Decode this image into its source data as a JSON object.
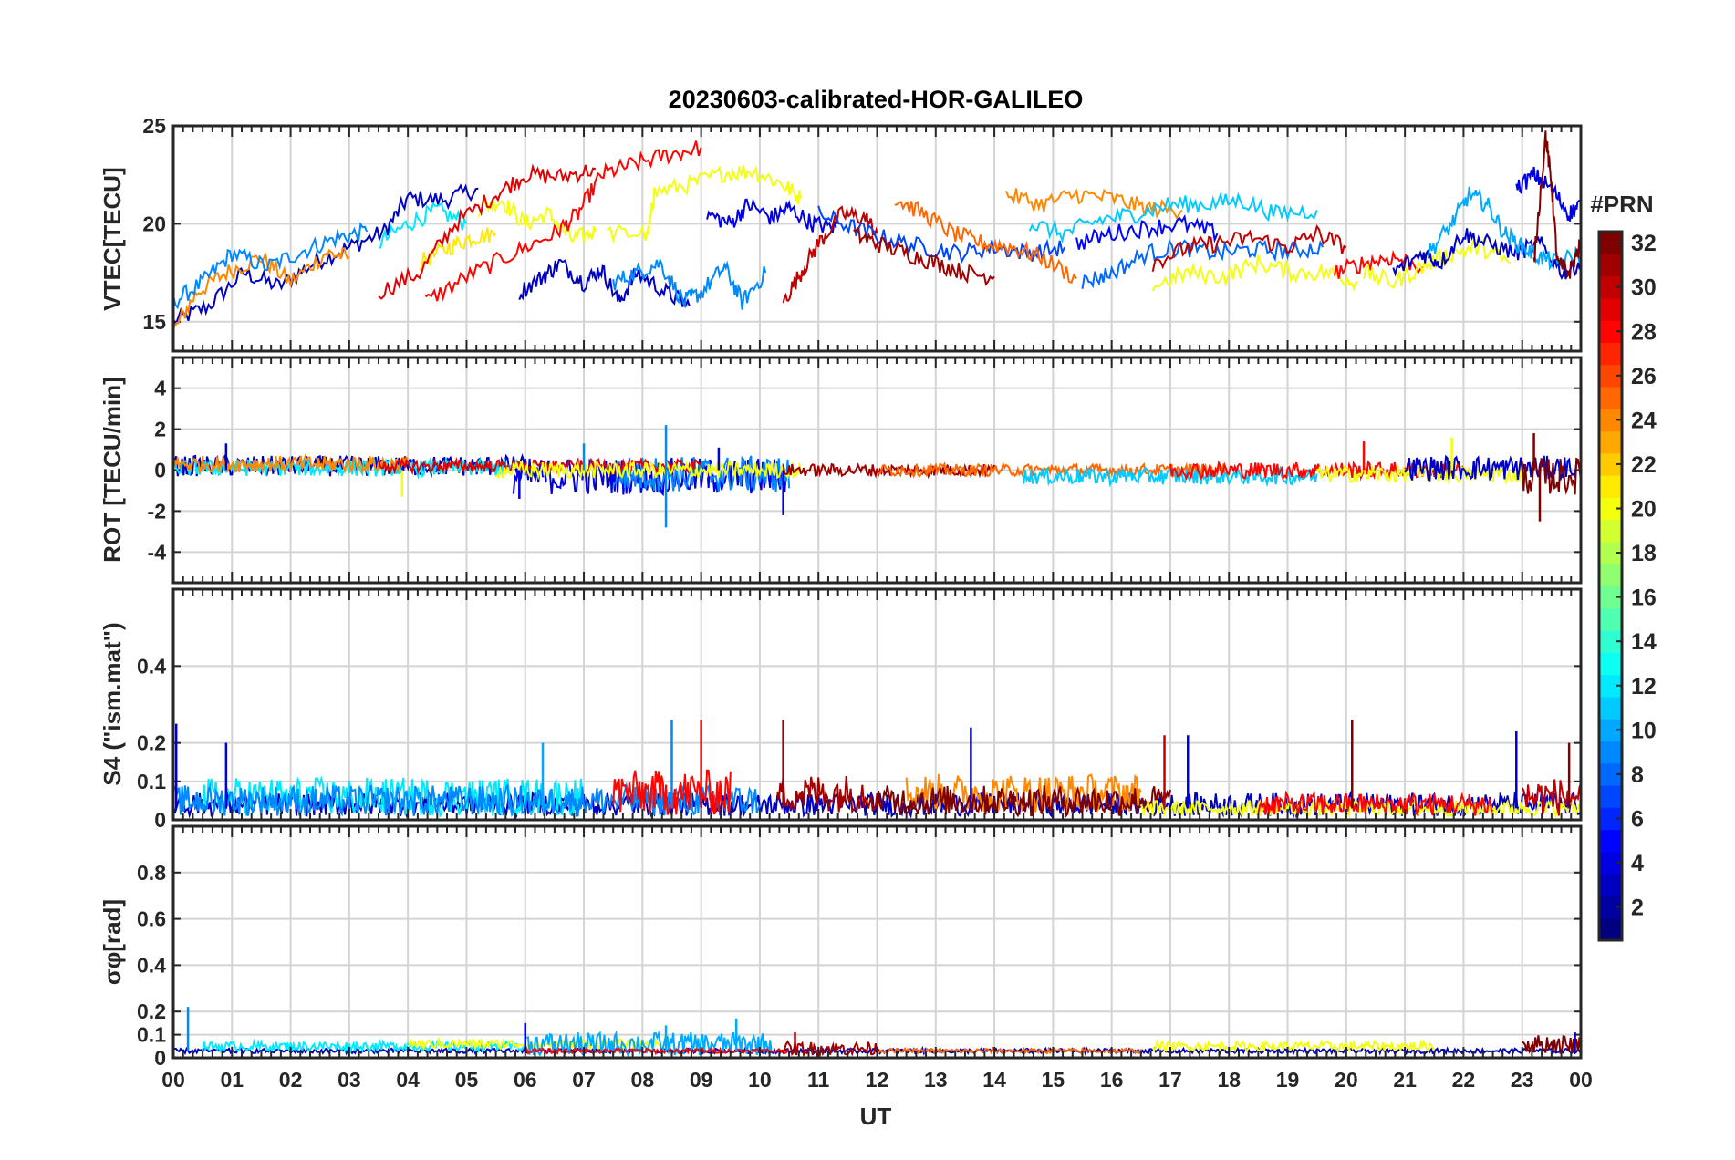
{
  "figure": {
    "title": "20230603-calibrated-HOR-GALILEO",
    "xlabel": "UT",
    "x_tick_labels": [
      "00",
      "01",
      "02",
      "03",
      "04",
      "05",
      "06",
      "07",
      "08",
      "09",
      "10",
      "11",
      "12",
      "13",
      "14",
      "15",
      "16",
      "17",
      "18",
      "19",
      "20",
      "21",
      "22",
      "23",
      "00"
    ]
  },
  "colorbar": {
    "label": "#PRN",
    "range": [
      1,
      32
    ],
    "tick_labels": [
      "2",
      "4",
      "6",
      "8",
      "10",
      "12",
      "14",
      "16",
      "18",
      "20",
      "22",
      "24",
      "26",
      "28",
      "30",
      "32"
    ],
    "colormap": "jet"
  },
  "chart_data": [
    {
      "type": "line",
      "ylabel": "VTEC[TECU]",
      "xlim": [
        0,
        24
      ],
      "ylim": [
        13.5,
        25
      ],
      "y_tick_labels": [
        "15",
        "20",
        "25"
      ],
      "grid": true,
      "series": [
        {
          "prn": 3,
          "x": [
            0.0,
            0.6,
            1.2,
            1.8,
            2.4,
            3.0,
            3.6,
            4.0,
            4.6,
            5.2
          ],
          "y": [
            15.0,
            15.8,
            17.5,
            16.8,
            18.0,
            18.8,
            19.6,
            21.3,
            21.2,
            21.8
          ]
        },
        {
          "prn": 24,
          "x": [
            0.0,
            0.4,
            0.9,
            1.5,
            2.0,
            2.6,
            3.0
          ],
          "y": [
            14.5,
            16.5,
            17.5,
            18.3,
            17.0,
            18.5,
            18.3
          ]
        },
        {
          "prn": 9,
          "x": [
            0.0,
            0.5,
            1.0,
            1.6,
            2.2,
            2.8,
            3.3
          ],
          "y": [
            16.0,
            17.0,
            18.5,
            17.8,
            18.6,
            19.3,
            19.6
          ]
        },
        {
          "prn": 12,
          "x": [
            3.5,
            4.0,
            4.5,
            5.0
          ],
          "y": [
            19.0,
            20.0,
            20.7,
            20.0
          ]
        },
        {
          "prn": 21,
          "x": [
            4.2,
            4.7,
            5.1,
            5.5
          ],
          "y": [
            18.0,
            18.8,
            19.3,
            19.5
          ]
        },
        {
          "prn": 20,
          "x": [
            5.2,
            5.6,
            6.0,
            6.4,
            6.8,
            7.2
          ],
          "y": [
            20.8,
            21.2,
            20.0,
            20.5,
            19.2,
            19.6
          ]
        },
        {
          "prn": 29,
          "x": [
            3.5,
            4.2,
            4.8,
            5.5,
            6.0,
            6.6,
            7.2
          ],
          "y": [
            16.5,
            17.5,
            20.0,
            21.5,
            22.5,
            22.4,
            22.8
          ]
        },
        {
          "prn": 28,
          "x": [
            4.3,
            5.0,
            5.8,
            6.5,
            6.9,
            7.3,
            7.8,
            8.4,
            9.0
          ],
          "y": [
            16.0,
            17.3,
            18.5,
            19.5,
            20.5,
            22.5,
            23.0,
            23.5,
            23.9
          ]
        },
        {
          "prn": 20,
          "x": [
            7.4,
            8.1,
            8.2,
            8.8,
            9.4,
            9.9,
            10.4,
            10.7
          ],
          "y": [
            19.5,
            19.5,
            21.6,
            22.0,
            22.6,
            22.7,
            22.0,
            21.3
          ]
        },
        {
          "prn": 3,
          "x": [
            5.9,
            6.3,
            6.6,
            7.0,
            7.3,
            7.6,
            7.9,
            8.4,
            8.8
          ],
          "y": [
            16.5,
            17.3,
            18.0,
            17.0,
            17.7,
            16.0,
            17.5,
            16.5,
            15.8
          ]
        },
        {
          "prn": 9,
          "x": [
            7.5,
            7.9,
            8.3,
            8.7,
            9.0,
            9.4,
            9.7,
            10.1
          ],
          "y": [
            17.0,
            17.5,
            18.0,
            16.0,
            16.5,
            17.8,
            16.0,
            17.5
          ]
        },
        {
          "prn": 4,
          "x": [
            9.1,
            9.5,
            9.8,
            10.2,
            10.5,
            10.9,
            11.3
          ],
          "y": [
            20.5,
            20.0,
            21.0,
            20.3,
            20.8,
            20.0,
            19.8
          ]
        },
        {
          "prn": 30,
          "x": [
            10.4,
            10.7,
            11.0,
            11.4,
            11.8,
            12.0
          ],
          "y": [
            16.0,
            17.5,
            19.0,
            20.5,
            20.3,
            19.5
          ]
        },
        {
          "prn": 7,
          "x": [
            11.0,
            11.6,
            12.2,
            12.8,
            13.4,
            14.0,
            14.6,
            15.2
          ],
          "y": [
            20.5,
            19.8,
            19.2,
            18.8,
            18.5,
            18.8,
            18.5,
            18.8
          ]
        },
        {
          "prn": 31,
          "x": [
            11.6,
            12.0,
            12.5,
            13.0,
            13.5,
            14.0
          ],
          "y": [
            19.5,
            19.0,
            18.5,
            18.0,
            17.5,
            17.3
          ]
        },
        {
          "prn": 25,
          "x": [
            12.3,
            12.8,
            13.3,
            13.8,
            14.3,
            14.8,
            15.4
          ],
          "y": [
            21.3,
            20.5,
            19.5,
            19.0,
            18.8,
            18.3,
            17.2
          ]
        },
        {
          "prn": 24,
          "x": [
            14.2,
            14.8,
            15.4,
            16.0,
            16.6,
            17.2
          ],
          "y": [
            21.5,
            21.0,
            21.5,
            21.3,
            20.8,
            20.7
          ]
        },
        {
          "prn": 11,
          "x": [
            14.6,
            15.2,
            15.8,
            16.4,
            17.0,
            17.6,
            18.2,
            18.8,
            19.5
          ],
          "y": [
            20.0,
            19.5,
            20.2,
            20.5,
            21.0,
            21.0,
            21.2,
            20.5,
            20.7
          ]
        },
        {
          "prn": 8,
          "x": [
            15.5,
            16.0,
            16.6,
            17.2,
            17.8,
            18.4,
            19.0,
            19.6
          ],
          "y": [
            17.0,
            17.5,
            18.5,
            18.8,
            18.5,
            18.7,
            18.6,
            18.8
          ]
        },
        {
          "prn": 5,
          "x": [
            15.4,
            16.0,
            16.6,
            17.2,
            17.8
          ],
          "y": [
            19.0,
            19.5,
            19.8,
            20.0,
            19.5
          ]
        },
        {
          "prn": 20,
          "x": [
            16.7,
            17.3,
            17.9,
            18.5,
            19.1,
            19.7,
            20.2
          ],
          "y": [
            16.8,
            17.5,
            17.3,
            18.0,
            17.5,
            17.5,
            17.0
          ]
        },
        {
          "prn": 30,
          "x": [
            16.7,
            17.3,
            17.8,
            18.4,
            19.0,
            19.5,
            20.0
          ],
          "y": [
            18.0,
            18.8,
            19.0,
            19.3,
            18.8,
            19.5,
            18.8
          ]
        },
        {
          "prn": 28,
          "x": [
            19.8,
            20.3,
            20.8,
            21.3
          ],
          "y": [
            17.5,
            18.0,
            18.3,
            17.8
          ]
        },
        {
          "prn": 20,
          "x": [
            20.3,
            20.8,
            21.3,
            21.8,
            22.3,
            22.8
          ],
          "y": [
            17.5,
            17.0,
            17.8,
            18.5,
            18.8,
            18.0
          ]
        },
        {
          "prn": 3,
          "x": [
            20.8,
            21.3,
            21.6,
            22.0,
            22.4,
            22.9,
            23.3,
            23.7,
            24.0
          ],
          "y": [
            17.5,
            18.5,
            18.0,
            19.5,
            19.0,
            18.5,
            19.0,
            17.5,
            18.0
          ]
        },
        {
          "prn": 10,
          "x": [
            21.4,
            21.8,
            22.1,
            22.4,
            22.7,
            23.0,
            23.3,
            23.6,
            24.0
          ],
          "y": [
            18.5,
            20.0,
            21.5,
            21.0,
            19.5,
            18.8,
            18.3,
            18.0,
            18.5
          ]
        },
        {
          "prn": 4,
          "x": [
            22.9,
            23.2,
            23.5,
            23.8,
            24.0
          ],
          "y": [
            21.8,
            22.5,
            21.8,
            20.5,
            21.0
          ]
        },
        {
          "prn": 32,
          "x": [
            23.2,
            23.4,
            23.5,
            23.6,
            23.8,
            24.0
          ],
          "y": [
            18.0,
            24.5,
            22.0,
            18.0,
            17.5,
            19.0
          ]
        }
      ]
    },
    {
      "type": "line",
      "ylabel": "ROT [TECU/min]",
      "xlim": [
        0,
        24
      ],
      "ylim": [
        -5.5,
        5.5
      ],
      "y_tick_labels": [
        "-4",
        "-2",
        "0",
        "2",
        "4"
      ],
      "grid": true,
      "noise_bands": [
        {
          "prn": 3,
          "x_range": [
            0.0,
            6.0
          ],
          "center": 0.2,
          "amplitude": 0.5
        },
        {
          "prn": 12,
          "x_range": [
            0.0,
            6.0
          ],
          "center": 0.1,
          "amplitude": 0.4
        },
        {
          "prn": 24,
          "x_range": [
            0.0,
            4.0
          ],
          "center": 0.3,
          "amplitude": 0.4
        },
        {
          "prn": 4,
          "x_range": [
            5.8,
            10.5
          ],
          "center": -0.3,
          "amplitude": 0.9
        },
        {
          "prn": 9,
          "x_range": [
            7.5,
            10.5
          ],
          "center": -0.2,
          "amplitude": 0.9
        },
        {
          "prn": 29,
          "x_range": [
            3.5,
            9.0
          ],
          "center": 0.2,
          "amplitude": 0.3
        },
        {
          "prn": 20,
          "x_range": [
            5.5,
            10.7
          ],
          "center": 0.0,
          "amplitude": 0.4
        },
        {
          "prn": 31,
          "x_range": [
            10.4,
            14.0
          ],
          "center": 0.0,
          "amplitude": 0.3
        },
        {
          "prn": 25,
          "x_range": [
            12.0,
            18.0
          ],
          "center": 0.0,
          "amplitude": 0.3
        },
        {
          "prn": 11,
          "x_range": [
            14.5,
            19.5
          ],
          "center": -0.3,
          "amplitude": 0.4
        },
        {
          "prn": 28,
          "x_range": [
            17.0,
            22.0
          ],
          "center": 0.0,
          "amplitude": 0.4
        },
        {
          "prn": 20,
          "x_range": [
            19.5,
            23.0
          ],
          "center": -0.2,
          "amplitude": 0.4
        },
        {
          "prn": 3,
          "x_range": [
            21.0,
            24.0
          ],
          "center": 0.1,
          "amplitude": 0.6
        },
        {
          "prn": 32,
          "x_range": [
            23.0,
            24.0
          ],
          "center": -0.3,
          "amplitude": 0.9
        }
      ],
      "spikes": [
        {
          "prn": 9,
          "x": 8.4,
          "y": 2.2
        },
        {
          "prn": 9,
          "x": 8.4,
          "y": -2.8
        },
        {
          "prn": 4,
          "x": 10.4,
          "y": -2.2
        },
        {
          "prn": 32,
          "x": 23.3,
          "y": -2.5
        },
        {
          "prn": 32,
          "x": 23.2,
          "y": 1.8
        },
        {
          "prn": 3,
          "x": 0.9,
          "y": 1.3
        },
        {
          "prn": 28,
          "x": 20.3,
          "y": 1.4
        },
        {
          "prn": 20,
          "x": 21.8,
          "y": 1.6
        },
        {
          "prn": 20,
          "x": 3.9,
          "y": -1.3
        },
        {
          "prn": 4,
          "x": 5.9,
          "y": -1.4
        },
        {
          "prn": 9,
          "x": 7.0,
          "y": 1.3
        },
        {
          "prn": 4,
          "x": 9.3,
          "y": 1.1
        }
      ]
    },
    {
      "type": "line",
      "ylabel": "S4 (\"ism.mat\")",
      "xlim": [
        0,
        24
      ],
      "ylim": [
        0,
        0.6
      ],
      "y_tick_labels": [
        "0",
        "0.1",
        "0.2",
        "0.4"
      ],
      "grid": true,
      "noise_bands": [
        {
          "prn": 3,
          "x_range": [
            0.0,
            24.0
          ],
          "center": 0.04,
          "amplitude": 0.03
        },
        {
          "prn": 12,
          "x_range": [
            0.5,
            7.0
          ],
          "center": 0.06,
          "amplitude": 0.05
        },
        {
          "prn": 9,
          "x_range": [
            0.0,
            10.0
          ],
          "center": 0.05,
          "amplitude": 0.04
        },
        {
          "prn": 28,
          "x_range": [
            7.5,
            9.5
          ],
          "center": 0.07,
          "amplitude": 0.06
        },
        {
          "prn": 31,
          "x_range": [
            10.3,
            12.0
          ],
          "center": 0.07,
          "amplitude": 0.05
        },
        {
          "prn": 24,
          "x_range": [
            12.5,
            16.5
          ],
          "center": 0.07,
          "amplitude": 0.05
        },
        {
          "prn": 32,
          "x_range": [
            12.0,
            17.0
          ],
          "center": 0.05,
          "amplitude": 0.04
        },
        {
          "prn": 20,
          "x_range": [
            16.5,
            24.0
          ],
          "center": 0.03,
          "amplitude": 0.02
        },
        {
          "prn": 28,
          "x_range": [
            18.5,
            22.5
          ],
          "center": 0.04,
          "amplitude": 0.03
        },
        {
          "prn": 30,
          "x_range": [
            23.0,
            24.0
          ],
          "center": 0.06,
          "amplitude": 0.05
        }
      ],
      "spikes": [
        {
          "prn": 3,
          "x": 0.05,
          "y": 0.25
        },
        {
          "prn": 4,
          "x": 0.9,
          "y": 0.2
        },
        {
          "prn": 9,
          "x": 8.5,
          "y": 0.26
        },
        {
          "prn": 28,
          "x": 9.0,
          "y": 0.26
        },
        {
          "prn": 31,
          "x": 10.4,
          "y": 0.26
        },
        {
          "prn": 5,
          "x": 13.6,
          "y": 0.24
        },
        {
          "prn": 4,
          "x": 17.3,
          "y": 0.22
        },
        {
          "prn": 30,
          "x": 16.9,
          "y": 0.22
        },
        {
          "prn": 32,
          "x": 20.1,
          "y": 0.26
        },
        {
          "prn": 3,
          "x": 22.9,
          "y": 0.23
        },
        {
          "prn": 32,
          "x": 23.8,
          "y": 0.2
        },
        {
          "prn": 10,
          "x": 6.3,
          "y": 0.2
        }
      ]
    },
    {
      "type": "line",
      "ylabel": "σφ[rad]",
      "xlim": [
        0,
        24
      ],
      "ylim": [
        0,
        1.0
      ],
      "y_tick_labels": [
        "0",
        "0.1",
        "0.2",
        "0.4",
        "0.6",
        "0.8"
      ],
      "grid": true,
      "noise_bands": [
        {
          "prn": 3,
          "x_range": [
            0.0,
            24.0
          ],
          "center": 0.03,
          "amplitude": 0.01
        },
        {
          "prn": 12,
          "x_range": [
            0.5,
            6.0
          ],
          "center": 0.05,
          "amplitude": 0.02
        },
        {
          "prn": 20,
          "x_range": [
            4.0,
            8.5
          ],
          "center": 0.06,
          "amplitude": 0.02
        },
        {
          "prn": 10,
          "x_range": [
            6.0,
            10.2
          ],
          "center": 0.06,
          "amplitude": 0.05
        },
        {
          "prn": 28,
          "x_range": [
            6.0,
            10.5
          ],
          "center": 0.03,
          "amplitude": 0.01
        },
        {
          "prn": 31,
          "x_range": [
            10.4,
            12.0
          ],
          "center": 0.04,
          "amplitude": 0.03
        },
        {
          "prn": 25,
          "x_range": [
            12.0,
            16.5
          ],
          "center": 0.03,
          "amplitude": 0.01
        },
        {
          "prn": 20,
          "x_range": [
            16.7,
            21.5
          ],
          "center": 0.05,
          "amplitude": 0.02
        },
        {
          "prn": 32,
          "x_range": [
            23.0,
            24.0
          ],
          "center": 0.06,
          "amplitude": 0.04
        }
      ],
      "spikes": [
        {
          "prn": 9,
          "x": 0.25,
          "y": 0.22
        },
        {
          "prn": 4,
          "x": 6.0,
          "y": 0.15
        },
        {
          "prn": 10,
          "x": 8.4,
          "y": 0.14
        },
        {
          "prn": 10,
          "x": 9.6,
          "y": 0.17
        },
        {
          "prn": 31,
          "x": 10.6,
          "y": 0.11
        },
        {
          "prn": 3,
          "x": 23.9,
          "y": 0.11
        }
      ]
    }
  ]
}
